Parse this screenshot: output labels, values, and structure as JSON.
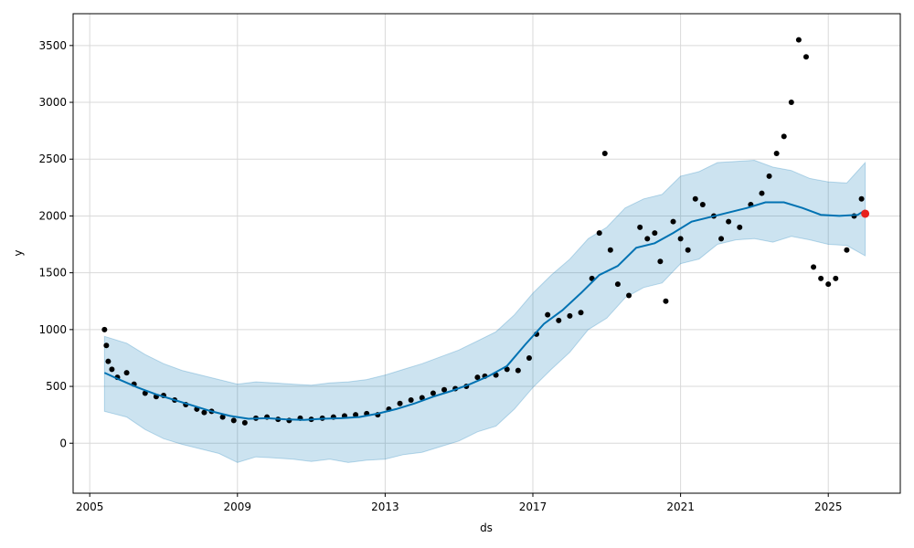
{
  "chart_data": {
    "type": "line",
    "title": "",
    "xlabel": "ds",
    "ylabel": "y",
    "xlim": [
      2004.55,
      2026.95
    ],
    "ylim": [
      -440,
      3780
    ],
    "grid": true,
    "xticks": [
      2005,
      2009,
      2013,
      2017,
      2021,
      2025
    ],
    "xtick_labels": [
      "2005",
      "2009",
      "2013",
      "2017",
      "2021",
      "2025"
    ],
    "yticks": [
      0,
      500,
      1000,
      1500,
      2000,
      2500,
      3000,
      3500
    ],
    "ytick_labels": [
      "0",
      "500",
      "1000",
      "1500",
      "2000",
      "2500",
      "3000",
      "3500"
    ],
    "colors": {
      "observed": "#000000",
      "forecast": "#0072B2",
      "interval_fill": "#0072B2",
      "highlight": "#e8201c",
      "grid": "#d9d9d9"
    },
    "series": [
      {
        "kind": "band",
        "x": [
          2005.4,
          2006.0,
          2006.5,
          2007.0,
          2007.5,
          2008.0,
          2008.5,
          2009.0,
          2009.5,
          2010.0,
          2010.5,
          2011.0,
          2011.5,
          2012.0,
          2012.5,
          2013.0,
          2013.5,
          2014.0,
          2014.5,
          2015.0,
          2015.5,
          2016.0,
          2016.5,
          2017.0,
          2017.5,
          2018.0,
          2018.5,
          2019.0,
          2019.5,
          2020.0,
          2020.5,
          2021.0,
          2021.5,
          2022.0,
          2022.5,
          2023.0,
          2023.5,
          2024.0,
          2024.5,
          2025.0,
          2025.5,
          2026.0
        ],
        "lower": [
          280,
          230,
          120,
          40,
          -10,
          -50,
          -90,
          -170,
          -120,
          -130,
          -140,
          -160,
          -140,
          -170,
          -150,
          -140,
          -100,
          -80,
          -30,
          20,
          100,
          150,
          300,
          490,
          650,
          800,
          1000,
          1100,
          1280,
          1370,
          1410,
          1580,
          1620,
          1750,
          1790,
          1800,
          1770,
          1820,
          1790,
          1750,
          1740,
          1650
        ],
        "upper": [
          940,
          880,
          780,
          700,
          640,
          600,
          560,
          520,
          540,
          530,
          520,
          510,
          530,
          540,
          560,
          600,
          650,
          700,
          760,
          820,
          900,
          980,
          1130,
          1320,
          1480,
          1620,
          1800,
          1900,
          2070,
          2150,
          2190,
          2350,
          2390,
          2470,
          2480,
          2490,
          2430,
          2400,
          2330,
          2300,
          2290,
          2470
        ]
      },
      {
        "kind": "line",
        "x": [
          2005.4,
          2005.8,
          2006.3,
          2006.8,
          2007.3,
          2007.8,
          2008.3,
          2008.8,
          2009.3,
          2009.8,
          2010.3,
          2010.8,
          2011.3,
          2011.8,
          2012.3,
          2012.8,
          2013.3,
          2013.8,
          2014.3,
          2014.8,
          2015.3,
          2015.8,
          2016.3,
          2016.8,
          2017.3,
          2017.8,
          2018.3,
          2018.8,
          2019.3,
          2019.8,
          2020.3,
          2020.8,
          2021.3,
          2021.8,
          2022.3,
          2022.8,
          2023.3,
          2023.8,
          2024.3,
          2024.8,
          2025.3,
          2025.8,
          2026.0
        ],
        "y": [
          620,
          560,
          490,
          430,
          380,
          330,
          280,
          240,
          215,
          220,
          210,
          205,
          215,
          220,
          230,
          260,
          300,
          350,
          410,
          460,
          520,
          590,
          680,
          870,
          1050,
          1170,
          1320,
          1480,
          1560,
          1720,
          1760,
          1850,
          1950,
          1990,
          2030,
          2070,
          2120,
          2120,
          2070,
          2010,
          2000,
          2010,
          2050
        ]
      },
      {
        "kind": "scatter",
        "x": [
          2005.4,
          2005.45,
          2005.5,
          2005.6,
          2005.75,
          2006.0,
          2006.2,
          2006.5,
          2006.8,
          2007.0,
          2007.3,
          2007.6,
          2007.9,
          2008.1,
          2008.3,
          2008.6,
          2008.9,
          2009.2,
          2009.5,
          2009.8,
          2010.1,
          2010.4,
          2010.7,
          2011.0,
          2011.3,
          2011.6,
          2011.9,
          2012.2,
          2012.5,
          2012.8,
          2013.1,
          2013.4,
          2013.7,
          2014.0,
          2014.3,
          2014.6,
          2014.9,
          2015.2,
          2015.5,
          2015.7,
          2016.0,
          2016.3,
          2016.6,
          2016.9,
          2017.1,
          2017.4,
          2017.7,
          2018.0,
          2018.3,
          2018.6,
          2018.8,
          2018.95,
          2019.1,
          2019.3,
          2019.6,
          2019.9,
          2020.1,
          2020.3,
          2020.45,
          2020.6,
          2020.8,
          2021.0,
          2021.2,
          2021.4,
          2021.6,
          2021.9,
          2022.1,
          2022.3,
          2022.6,
          2022.9,
          2023.2,
          2023.4,
          2023.6,
          2023.8,
          2024.0,
          2024.2,
          2024.4,
          2024.6,
          2024.8,
          2025.0,
          2025.2,
          2025.5,
          2025.7,
          2025.9
        ],
        "y": [
          1000,
          860,
          720,
          650,
          580,
          620,
          520,
          440,
          410,
          420,
          380,
          340,
          300,
          270,
          280,
          230,
          200,
          180,
          220,
          230,
          210,
          200,
          220,
          210,
          220,
          230,
          240,
          250,
          260,
          250,
          300,
          350,
          380,
          400,
          440,
          470,
          480,
          500,
          580,
          590,
          600,
          650,
          640,
          750,
          960,
          1130,
          1080,
          1120,
          1150,
          1450,
          1850,
          2550,
          1700,
          1400,
          1300,
          1900,
          1800,
          1850,
          1600,
          1250,
          1950,
          1800,
          1700,
          2150,
          2100,
          2000,
          1800,
          1950,
          1900,
          2100,
          2200,
          2350,
          2550,
          2700,
          3000,
          3550,
          3400,
          1550,
          1450,
          1400,
          1450,
          1700,
          2000,
          2150
        ]
      },
      {
        "kind": "highlight",
        "x": [
          2026.0
        ],
        "y": [
          2020
        ]
      }
    ]
  }
}
